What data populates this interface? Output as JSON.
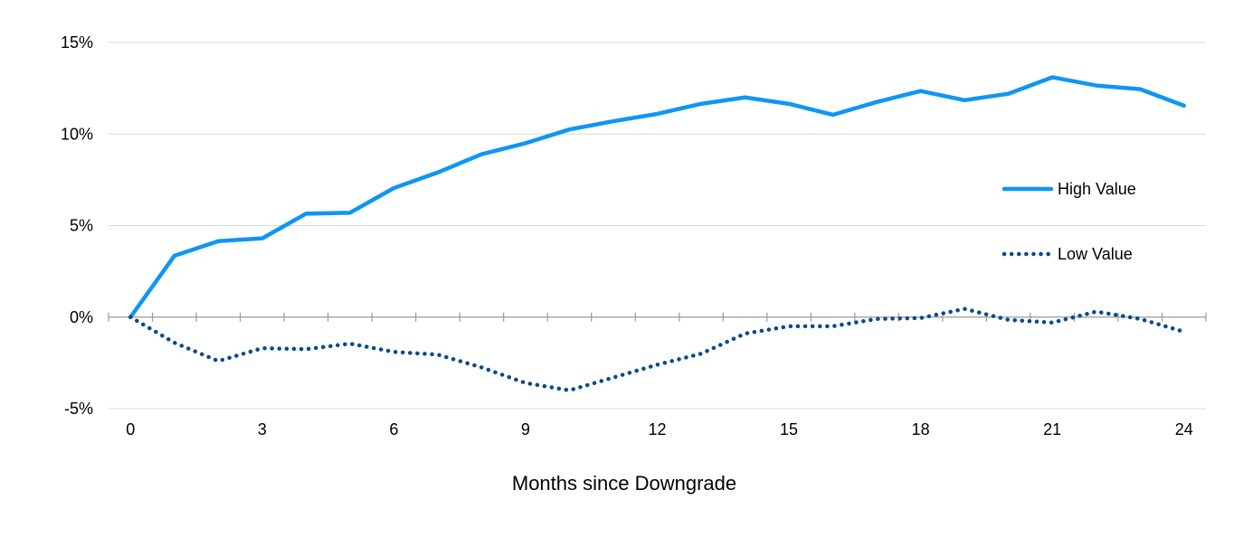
{
  "chart_data": {
    "type": "line",
    "title": "",
    "xlabel": "Months since Downgrade",
    "ylabel": "",
    "x": [
      0,
      1,
      2,
      3,
      4,
      5,
      6,
      7,
      8,
      9,
      10,
      11,
      12,
      13,
      14,
      15,
      16,
      17,
      18,
      19,
      20,
      21,
      22,
      23,
      24
    ],
    "xticks": [
      0,
      3,
      6,
      9,
      12,
      15,
      18,
      21,
      24
    ],
    "xlim": [
      -0.5,
      24.5
    ],
    "ylim": [
      -5,
      15
    ],
    "yticks": [
      -5,
      0,
      5,
      10,
      15
    ],
    "ytick_labels": [
      "-5%",
      "0%",
      "5%",
      "10%",
      "15%"
    ],
    "grid": "horizontal",
    "legend_position": "right",
    "series": [
      {
        "name": "High Value",
        "style": "solid",
        "color": "#0F96F5",
        "values": [
          0.0,
          3.35,
          4.15,
          4.3,
          5.65,
          5.7,
          7.05,
          7.9,
          8.9,
          9.5,
          10.25,
          10.7,
          11.1,
          11.65,
          12.0,
          11.65,
          11.05,
          11.75,
          12.35,
          11.85,
          12.2,
          13.1,
          12.65,
          12.45,
          11.55
        ]
      },
      {
        "name": "Low Value",
        "style": "dotted",
        "color": "#0B4A8B",
        "values": [
          0.0,
          -1.4,
          -2.4,
          -1.7,
          -1.75,
          -1.45,
          -1.9,
          -2.05,
          -2.75,
          -3.6,
          -4.0,
          -3.3,
          -2.6,
          -2.0,
          -0.9,
          -0.5,
          -0.5,
          -0.1,
          -0.05,
          0.45,
          -0.15,
          -0.3,
          0.3,
          -0.1,
          -0.8
        ]
      }
    ]
  }
}
